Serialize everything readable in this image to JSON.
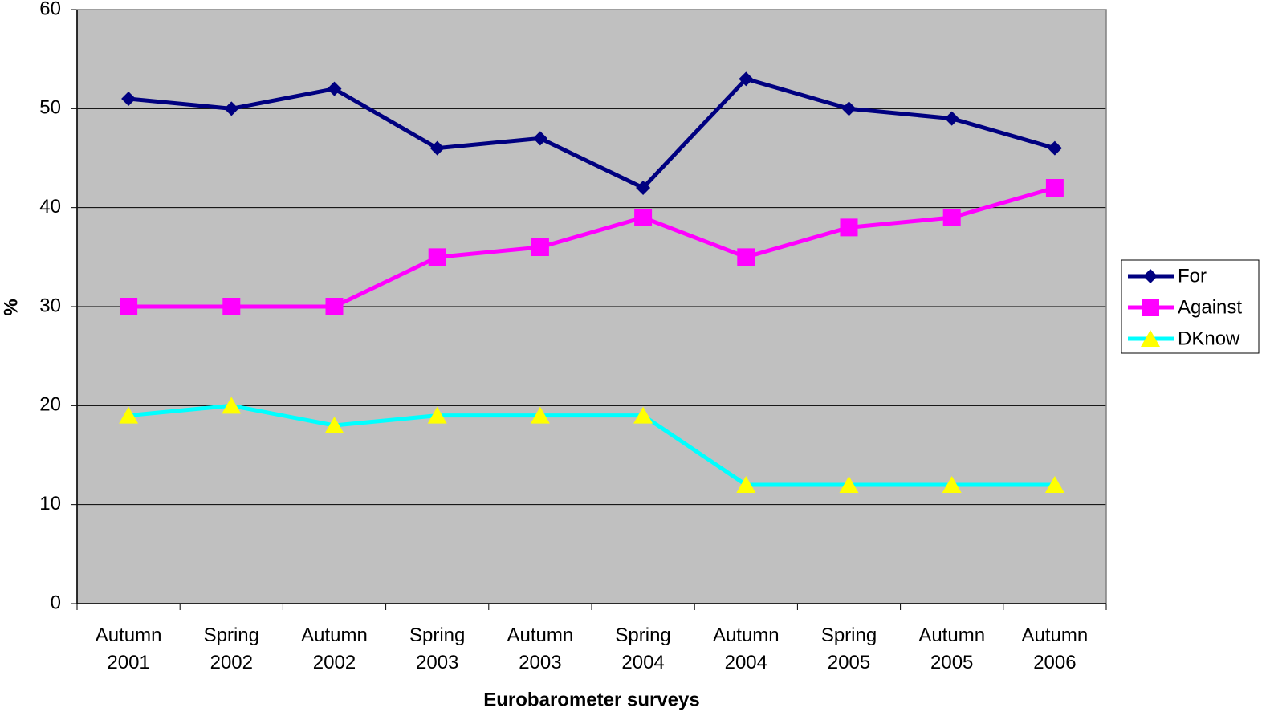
{
  "chart_data": {
    "type": "line",
    "x_label": "Eurobarometer surveys",
    "y_label": "%",
    "categories": [
      "Autumn 2001",
      "Spring 2002",
      "Autumn 2002",
      "Spring 2003",
      "Autumn 2003",
      "Spring 2004",
      "Autumn 2004",
      "Spring 2005",
      "Autumn 2005",
      "Autumn 2006"
    ],
    "series": [
      {
        "name": "For",
        "color": "#000080",
        "marker": "diamond",
        "marker_color": "#000080",
        "values": [
          51,
          50,
          52,
          46,
          47,
          42,
          53,
          50,
          49,
          46
        ]
      },
      {
        "name": "Against",
        "color": "#ff00ff",
        "marker": "square",
        "marker_color": "#ff00ff",
        "values": [
          30,
          30,
          30,
          35,
          36,
          39,
          35,
          38,
          39,
          42
        ]
      },
      {
        "name": "DKnow",
        "color": "#00ffff",
        "marker": "triangle",
        "marker_color": "#ffff00",
        "values": [
          19,
          20,
          18,
          19,
          19,
          19,
          12,
          12,
          12,
          12
        ]
      }
    ],
    "ylim": [
      0,
      60
    ],
    "yticks": [
      0,
      10,
      20,
      30,
      40,
      50,
      60
    ],
    "grid": true,
    "legend": "right",
    "plot_background": "#c0c0c0"
  }
}
